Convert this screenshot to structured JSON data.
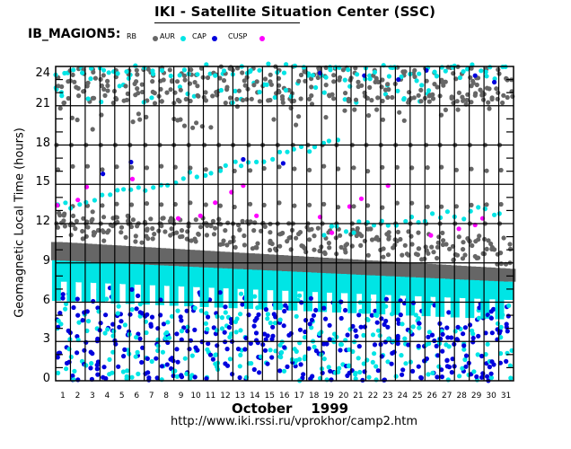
{
  "chart_data": {
    "type": "scatter",
    "title": "IKI - Satellite Situation Center (SSC)",
    "satellite": "IB_MAGION5:",
    "xlabel": "October    1999",
    "month": "October",
    "year": "1999",
    "ylabel": "Geomagnetic  Local Time  (hours)",
    "ylim": [
      0,
      24
    ],
    "xlim": [
      1,
      32
    ],
    "yticks": [
      "0",
      "3",
      "6",
      "9",
      "12",
      "15",
      "18",
      "21",
      "24"
    ],
    "ytick_values": [
      0,
      3,
      6,
      9,
      12,
      15,
      18,
      21,
      24
    ],
    "xticks": [
      "1",
      "2",
      "3",
      "4",
      "5",
      "6",
      "7",
      "8",
      "9",
      "10",
      "11",
      "12",
      "13",
      "14",
      "15",
      "16",
      "17",
      "18",
      "19",
      "20",
      "21",
      "22",
      "23",
      "24",
      "25",
      "26",
      "27",
      "28",
      "29",
      "30",
      "31"
    ],
    "grid": true,
    "legend_placement": "top-left",
    "legend": [
      {
        "name": "RB",
        "color": "#666666"
      },
      {
        "name": "AUR",
        "color": "#00e5e5"
      },
      {
        "name": "CAP",
        "color": "#0000dd"
      },
      {
        "name": "CUSP",
        "color": "#ff00ff"
      }
    ],
    "series_description": {
      "RB": "Dense band at 9–10.5 h, drifting from ~10.5 h (day 1) to ~8.5 h (day 31); scattered points at 11–13 h, 16–22 h and 21–24 h",
      "AUR": "Dense band ~6–9 h below RB band; scattered points at 0–6 h; diagonal track from ~13 h (day 1) rising to ~18 h (day 20); near 24 h",
      "CAP": "Scattered points 0–8 h below AUR band; few points near 16–17 h and 22–24 h",
      "CUSP": "Scattered points along diagonal 12.5–15 h (days 1–14) and 11.5–13 h (days 19–30)"
    },
    "samples": {
      "CUSP": [
        [
          1.1,
          13.4
        ],
        [
          2.5,
          13.8
        ],
        [
          3.1,
          14.8
        ],
        [
          10.8,
          12.6
        ],
        [
          11.8,
          13.6
        ],
        [
          12.9,
          14.4
        ],
        [
          13.7,
          14.9
        ],
        [
          14.6,
          12.6
        ],
        [
          18.9,
          12.5
        ],
        [
          20.9,
          13.3
        ],
        [
          21.7,
          13.9
        ],
        [
          23.5,
          14.9
        ],
        [
          28.3,
          11.6
        ],
        [
          29.4,
          11.9
        ],
        [
          29.9,
          12.4
        ],
        [
          26.4,
          11.1
        ],
        [
          6.2,
          15.4
        ],
        [
          9.3,
          12.4
        ],
        [
          19.7,
          11.3
        ]
      ],
      "CAP_upper": [
        [
          4.2,
          15.8
        ],
        [
          13.7,
          16.9
        ],
        [
          16.4,
          16.6
        ],
        [
          6.1,
          16.7
        ],
        [
          18.9,
          23.5
        ],
        [
          21.9,
          23.3
        ],
        [
          24.2,
          23.0
        ],
        [
          26.1,
          23.7
        ],
        [
          29.4,
          23.3
        ],
        [
          30.7,
          22.8
        ]
      ]
    },
    "footer_url": "http://www.iki.rssi.ru/vprokhor/camp2.htm"
  }
}
